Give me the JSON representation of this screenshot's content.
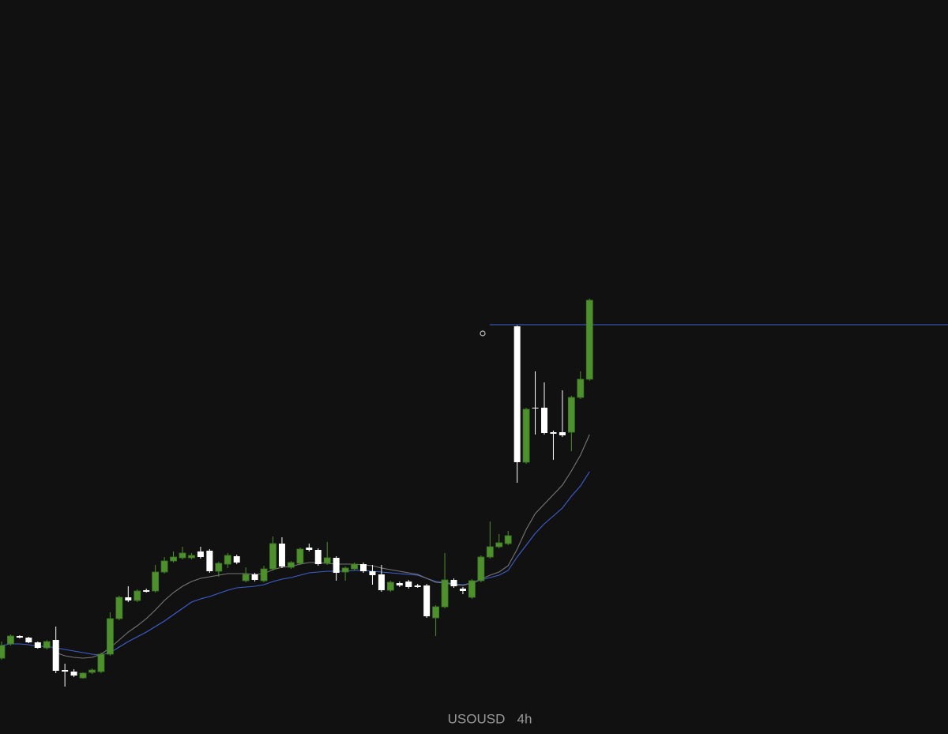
{
  "chart_data": {
    "type": "candlestick",
    "symbol": "USOUSD",
    "interval": "4h",
    "ylim": [
      0,
      929
    ],
    "up_color": "#4e8f2e",
    "down_color": "#ffffff",
    "open": [
      96,
      114,
      124,
      122,
      116,
      109,
      119,
      81,
      79,
      71,
      78,
      79,
      101,
      146,
      173,
      169,
      182,
      181,
      205,
      219,
      223,
      223,
      231,
      232,
      206,
      215,
      225,
      194,
      202,
      194,
      209,
      241,
      211,
      216,
      236,
      233,
      216,
      223,
      205,
      209,
      215,
      206,
      202,
      182,
      191,
      193,
      188,
      188,
      147,
      161,
      195,
      184,
      173,
      194,
      224,
      237,
      241,
      516,
      344,
      413,
      413,
      382,
      382,
      382,
      426,
      449
    ],
    "high": [
      117,
      126,
      125,
      123,
      117,
      119,
      136,
      89,
      82,
      78,
      83,
      103,
      154,
      175,
      187,
      183,
      184,
      214,
      224,
      231,
      237,
      229,
      237,
      234,
      218,
      229,
      227,
      211,
      204,
      213,
      250,
      249,
      219,
      236,
      241,
      235,
      243,
      225,
      212,
      217,
      217,
      214,
      214,
      194,
      193,
      195,
      190,
      190,
      163,
      229,
      197,
      186,
      196,
      226,
      269,
      253,
      257,
      517,
      413,
      459,
      445,
      384,
      435,
      428,
      459,
      551
    ],
    "low": [
      94,
      112,
      121,
      115,
      108,
      107,
      77,
      60,
      72,
      70,
      76,
      77,
      99,
      144,
      167,
      167,
      179,
      179,
      203,
      217,
      221,
      221,
      222,
      204,
      199,
      210,
      215,
      192,
      193,
      192,
      207,
      210,
      209,
      214,
      231,
      213,
      214,
      194,
      194,
      207,
      204,
      189,
      180,
      180,
      186,
      184,
      185,
      147,
      124,
      159,
      185,
      177,
      171,
      192,
      222,
      235,
      239,
      318,
      342,
      379,
      379,
      347,
      376,
      358,
      424,
      447
    ],
    "close": [
      112,
      124,
      122,
      116,
      109,
      117,
      80,
      79,
      74,
      77,
      81,
      101,
      146,
      173,
      169,
      181,
      180,
      205,
      219,
      224,
      229,
      226,
      224,
      206,
      216,
      226,
      217,
      202,
      195,
      209,
      241,
      212,
      217,
      234,
      233,
      215,
      223,
      204,
      210,
      215,
      206,
      201,
      182,
      192,
      188,
      186,
      186,
      149,
      161,
      195,
      187,
      181,
      194,
      224,
      237,
      242,
      251,
      344,
      411,
      412,
      381,
      380,
      378,
      426,
      449,
      549
    ],
    "lines": [
      {
        "color": "#3f5fd0",
        "values": [
          112,
          114,
          114,
          113,
          111,
          111,
          109,
          107,
          105,
          103,
          101,
          100,
          103,
          110,
          117,
          123,
          129,
          136,
          143,
          151,
          159,
          167,
          171,
          174,
          178,
          182,
          185,
          186,
          187,
          189,
          193,
          196,
          198,
          201,
          204,
          205,
          206,
          206,
          206,
          207,
          207,
          206,
          205,
          204,
          203,
          202,
          201,
          197,
          193,
          192,
          190,
          189,
          191,
          195,
          198,
          201,
          207,
          224,
          239,
          254,
          266,
          276,
          286,
          301,
          314,
          332
        ]
      },
      {
        "color": "#777777",
        "values": [
          null,
          null,
          null,
          null,
          null,
          null,
          103,
          99,
          97,
          96,
          97,
          101,
          109,
          119,
          129,
          137,
          146,
          157,
          169,
          179,
          187,
          193,
          197,
          199,
          201,
          203,
          203,
          203,
          202,
          203,
          208,
          211,
          212,
          215,
          217,
          217,
          216,
          215,
          215,
          215,
          214,
          213,
          210,
          208,
          206,
          204,
          202,
          197,
          192,
          191,
          189,
          188,
          191,
          196,
          201,
          205,
          213,
          234,
          259,
          279,
          291,
          303,
          315,
          333,
          353,
          379
        ]
      }
    ],
    "price_line": 518,
    "price_line_color": "#3f5fd0"
  }
}
